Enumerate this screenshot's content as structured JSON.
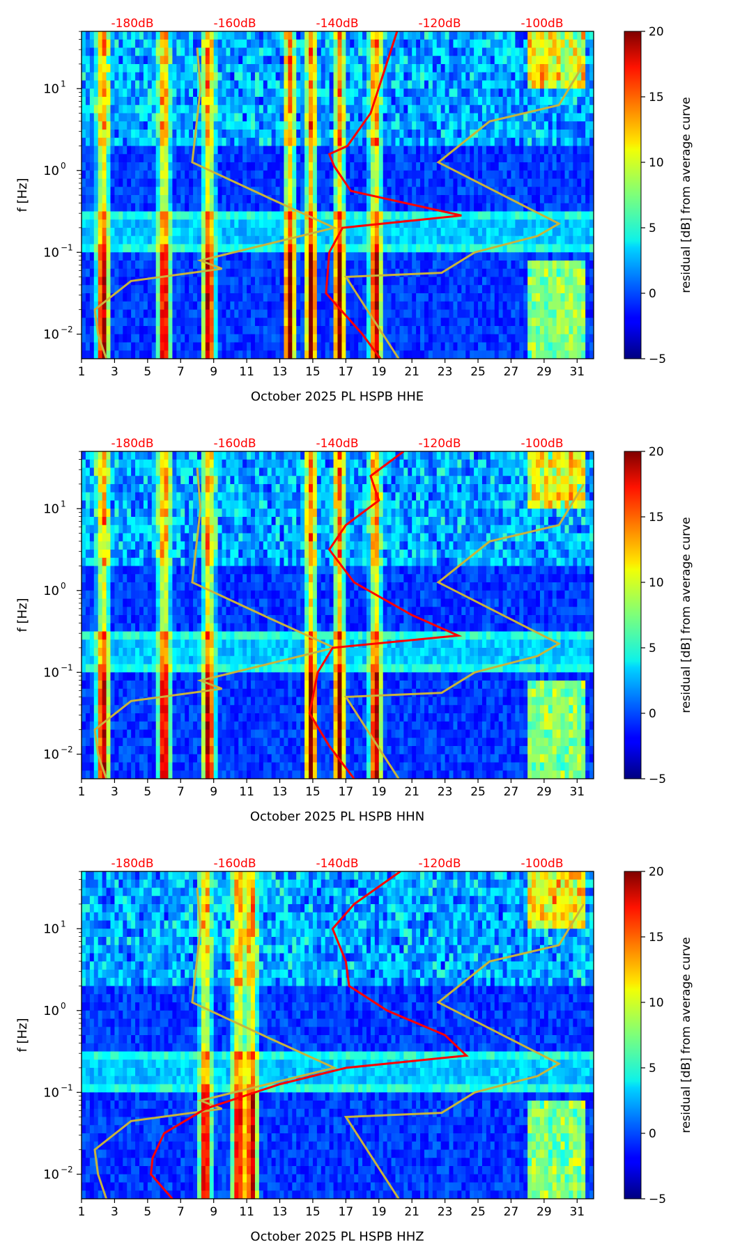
{
  "colors": {
    "accent_top": "#ff0000",
    "nlnm_nhnm": "#c8b43c",
    "mean_psd": "#ff0000"
  },
  "chart_data": [
    {
      "type": "heatmap",
      "title": "October 2025 PL HSPB  HHE",
      "xlabel": "October 2025 PL HSPB  HHE",
      "ylabel": "f [Hz]",
      "x_ticks": [
        "1",
        "3",
        "5",
        "7",
        "9",
        "11",
        "13",
        "15",
        "17",
        "19",
        "21",
        "23",
        "25",
        "27",
        "29",
        "31"
      ],
      "xlim": [
        1,
        32
      ],
      "ylim_log10": [
        -2.3,
        1.7
      ],
      "y_ticks": [
        "10^-2",
        "10^-1",
        "10^0",
        "10^1"
      ],
      "top_labels": [
        "-180dB",
        "-160dB",
        "-140dB",
        "-120dB",
        "-100dB"
      ],
      "colorbar": {
        "label": "residual [dB] from average curve",
        "min": -5,
        "max": 20,
        "ticks": [
          "−5",
          "0",
          "5",
          "10",
          "15",
          "20"
        ]
      },
      "hot_days": [
        2.3,
        6,
        8.7,
        13.6,
        14.9,
        16.6,
        18.8
      ],
      "mean_curve": [
        [
          1.7,
          20.1
        ],
        [
          0.7,
          18.5
        ],
        [
          0.3,
          17.1
        ],
        [
          0.2,
          16.0
        ],
        [
          0.05,
          16.3
        ],
        [
          -0.25,
          17.3
        ],
        [
          -0.55,
          24.0
        ],
        [
          -0.7,
          16.8
        ],
        [
          -1.0,
          16.0
        ],
        [
          -1.5,
          15.8
        ],
        [
          -2.0,
          18.0
        ],
        [
          -2.3,
          19.1
        ]
      ],
      "nlnm_curve": [
        [
          -2.3,
          2.5
        ],
        [
          -2.0,
          2.0
        ],
        [
          -1.7,
          1.8
        ],
        [
          -1.35,
          4.0
        ],
        [
          -1.2,
          9.5
        ],
        [
          -1.1,
          8.2
        ],
        [
          -0.7,
          16.3
        ],
        [
          -0.35,
          12.5
        ],
        [
          0.1,
          7.7
        ],
        [
          1.0,
          8.2
        ],
        [
          1.5,
          8.0
        ]
      ],
      "nhnm_curve": [
        [
          -2.3,
          20.2
        ],
        [
          -1.3,
          17.0
        ],
        [
          -1.25,
          22.8
        ],
        [
          -1.0,
          24.8
        ],
        [
          -0.8,
          28.6
        ],
        [
          -0.65,
          29.9
        ],
        [
          0.1,
          22.6
        ],
        [
          0.6,
          25.7
        ],
        [
          0.8,
          29.9
        ],
        [
          1.3,
          31.4
        ]
      ]
    },
    {
      "type": "heatmap",
      "title": "October 2025 PL HSPB  HHN",
      "xlabel": "October 2025 PL HSPB  HHN",
      "ylabel": "f [Hz]",
      "x_ticks": [
        "1",
        "3",
        "5",
        "7",
        "9",
        "11",
        "13",
        "15",
        "17",
        "19",
        "21",
        "23",
        "25",
        "27",
        "29",
        "31"
      ],
      "xlim": [
        1,
        32
      ],
      "ylim_log10": [
        -2.3,
        1.7
      ],
      "y_ticks": [
        "10^-2",
        "10^-1",
        "10^0",
        "10^1"
      ],
      "top_labels": [
        "-180dB",
        "-160dB",
        "-140dB",
        "-120dB",
        "-100dB"
      ],
      "colorbar": {
        "label": "residual [dB] from average curve",
        "min": -5,
        "max": 20,
        "ticks": [
          "−5",
          "0",
          "5",
          "10",
          "15",
          "20"
        ]
      },
      "hot_days": [
        2.3,
        6,
        8.7,
        14.9,
        16.6,
        18.8
      ],
      "mean_curve": [
        [
          1.7,
          20.5
        ],
        [
          1.4,
          18.5
        ],
        [
          1.1,
          19.0
        ],
        [
          0.8,
          17.0
        ],
        [
          0.5,
          16.0
        ],
        [
          0.1,
          17.5
        ],
        [
          -0.3,
          21.0
        ],
        [
          -0.55,
          23.8
        ],
        [
          -0.7,
          16.2
        ],
        [
          -1.0,
          15.3
        ],
        [
          -1.5,
          14.8
        ],
        [
          -1.9,
          16.0
        ],
        [
          -2.3,
          17.5
        ]
      ],
      "nlnm_curve": [
        [
          -2.3,
          2.5
        ],
        [
          -2.0,
          2.0
        ],
        [
          -1.7,
          1.8
        ],
        [
          -1.35,
          4.0
        ],
        [
          -1.2,
          9.5
        ],
        [
          -1.1,
          8.2
        ],
        [
          -0.7,
          16.3
        ],
        [
          -0.35,
          12.5
        ],
        [
          0.1,
          7.7
        ],
        [
          1.0,
          8.2
        ],
        [
          1.5,
          8.0
        ]
      ],
      "nhnm_curve": [
        [
          -2.3,
          20.2
        ],
        [
          -1.3,
          17.0
        ],
        [
          -1.25,
          22.8
        ],
        [
          -1.0,
          24.8
        ],
        [
          -0.8,
          28.6
        ],
        [
          -0.65,
          29.9
        ],
        [
          0.1,
          22.6
        ],
        [
          0.6,
          25.7
        ],
        [
          0.8,
          29.9
        ],
        [
          1.3,
          31.4
        ]
      ]
    },
    {
      "type": "heatmap",
      "title": "October 2025 PL HSPB  HHZ",
      "xlabel": "October 2025 PL HSPB  HHZ",
      "ylabel": "f [Hz]",
      "x_ticks": [
        "1",
        "3",
        "5",
        "7",
        "9",
        "11",
        "13",
        "15",
        "17",
        "19",
        "21",
        "23",
        "25",
        "27",
        "29",
        "31"
      ],
      "xlim": [
        1,
        32
      ],
      "ylim_log10": [
        -2.3,
        1.7
      ],
      "y_ticks": [
        "10^-2",
        "10^-1",
        "10^0",
        "10^1"
      ],
      "top_labels": [
        "-180dB",
        "-160dB",
        "-140dB",
        "-120dB",
        "-100dB"
      ],
      "colorbar": {
        "label": "residual [dB] from average curve",
        "min": -5,
        "max": 20,
        "ticks": [
          "−5",
          "0",
          "5",
          "10",
          "15",
          "20"
        ]
      },
      "hot_days": [
        8.5,
        10.5,
        11.3
      ],
      "mean_curve": [
        [
          1.7,
          20.3
        ],
        [
          1.3,
          17.5
        ],
        [
          1.0,
          16.2
        ],
        [
          0.6,
          17.0
        ],
        [
          0.3,
          17.2
        ],
        [
          0.0,
          19.5
        ],
        [
          -0.3,
          23.0
        ],
        [
          -0.55,
          24.3
        ],
        [
          -0.7,
          17.0
        ],
        [
          -0.9,
          13.0
        ],
        [
          -1.2,
          8.5
        ],
        [
          -1.5,
          6.0
        ],
        [
          -1.8,
          5.3
        ],
        [
          -2.0,
          5.2
        ],
        [
          -2.3,
          6.5
        ]
      ],
      "nlnm_curve": [
        [
          -2.3,
          2.5
        ],
        [
          -2.0,
          2.0
        ],
        [
          -1.7,
          1.8
        ],
        [
          -1.35,
          4.0
        ],
        [
          -1.2,
          9.5
        ],
        [
          -1.1,
          8.2
        ],
        [
          -0.7,
          16.3
        ],
        [
          -0.35,
          12.5
        ],
        [
          0.1,
          7.7
        ],
        [
          1.0,
          8.2
        ],
        [
          1.5,
          8.0
        ]
      ],
      "nhnm_curve": [
        [
          -2.3,
          20.2
        ],
        [
          -1.3,
          17.0
        ],
        [
          -1.25,
          22.8
        ],
        [
          -1.0,
          24.8
        ],
        [
          -0.8,
          28.6
        ],
        [
          -0.65,
          29.9
        ],
        [
          0.1,
          22.6
        ],
        [
          0.6,
          25.7
        ],
        [
          0.8,
          29.9
        ],
        [
          1.3,
          31.4
        ]
      ]
    }
  ]
}
